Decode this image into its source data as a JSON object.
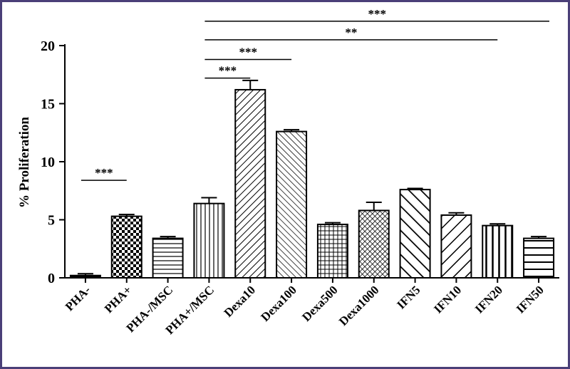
{
  "chart_data": {
    "type": "bar",
    "ylabel": "% Proliferation",
    "xlabel": "",
    "ylim": [
      0,
      20
    ],
    "yticks": [
      0,
      5,
      10,
      15,
      20
    ],
    "grid": false,
    "categories": [
      "PHA-",
      "PHA+",
      "PHA-/MSC",
      "PHA+/MSC",
      "Dexa10",
      "Dexa100",
      "Dexa500",
      "Dexa1000",
      "IFN5",
      "IFN10",
      "IFN20",
      "IFN50"
    ],
    "values": [
      0.2,
      5.3,
      3.4,
      6.4,
      16.2,
      12.6,
      4.6,
      5.8,
      7.6,
      5.4,
      4.5,
      3.4
    ],
    "errors": [
      0.15,
      0.15,
      0.15,
      0.5,
      0.8,
      0.15,
      0.15,
      0.7,
      0.1,
      0.2,
      0.15,
      0.15
    ],
    "patterns": [
      "solid",
      "checker",
      "horizontal",
      "vertical",
      "diag-up",
      "diag-down",
      "grid",
      "dots",
      "diag-down-wide",
      "diag-up-wide",
      "vertical-wide",
      "horizontal-wide"
    ],
    "significance": [
      {
        "from": 0,
        "to": 1,
        "label": "***",
        "y": 8.4
      },
      {
        "from": 3,
        "to": 4,
        "label": "***",
        "y": 17.2
      },
      {
        "from": 3,
        "to": 5,
        "label": "***",
        "y": 18.8
      },
      {
        "from": 3,
        "to": 10,
        "label": "**",
        "y": 20.5
      },
      {
        "from": 3,
        "to": 11,
        "label": "***",
        "y": 22.1
      }
    ]
  }
}
